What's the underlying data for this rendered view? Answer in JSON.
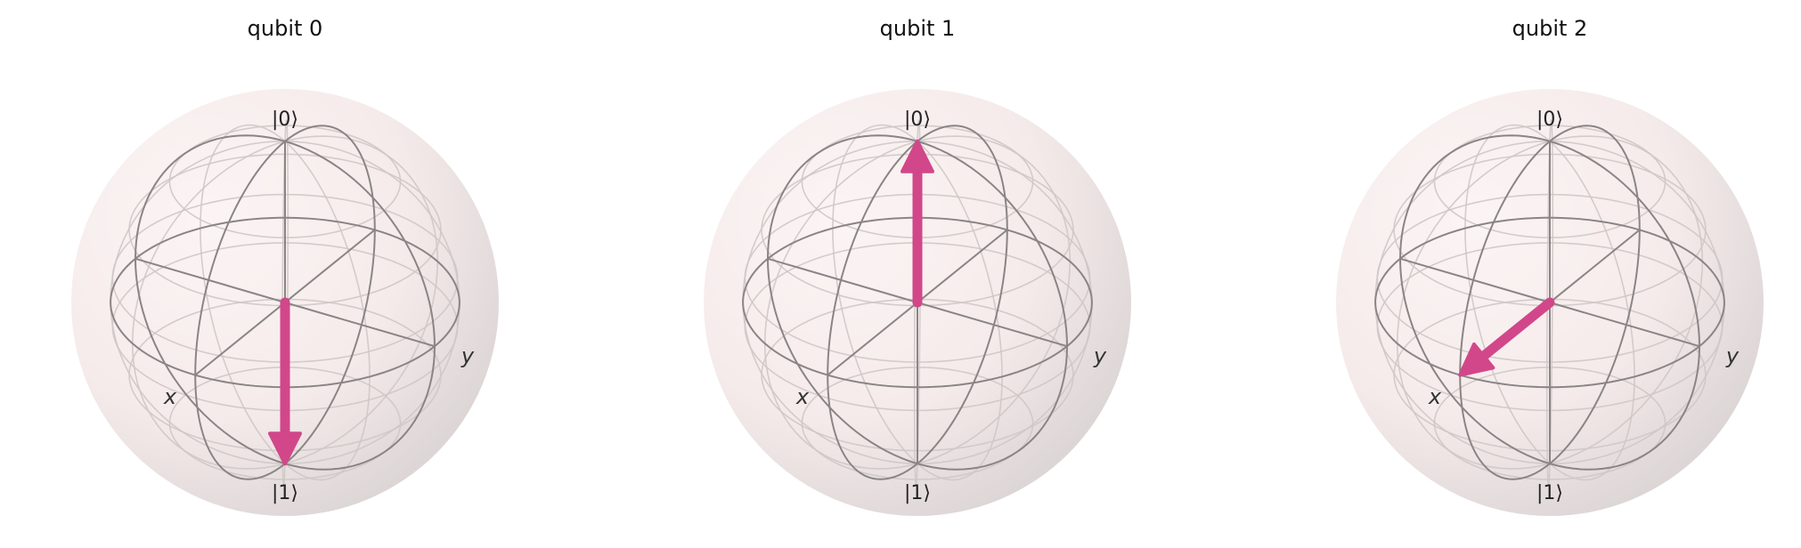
{
  "figure": {
    "colors": {
      "background": "#ffffff",
      "sphere_fill": "#f2e4e4",
      "sphere_shadow": "#c8c0c0",
      "wire_grid": "#cfc7c7",
      "wire_main": "#8a8585",
      "vector": "#d1478a"
    },
    "qubits": [
      {
        "title": "qubit 0",
        "top_label": "|0⟩",
        "bottom_label": "|1⟩",
        "x_label": "x",
        "y_label": "y",
        "state": "|1⟩",
        "bloch_vector": [
          0,
          0,
          -1
        ]
      },
      {
        "title": "qubit 1",
        "top_label": "|0⟩",
        "bottom_label": "|1⟩",
        "x_label": "x",
        "y_label": "y",
        "state": "|0⟩",
        "bloch_vector": [
          0,
          0,
          1
        ]
      },
      {
        "title": "qubit 2",
        "top_label": "|0⟩",
        "bottom_label": "|1⟩",
        "x_label": "x",
        "y_label": "y",
        "state": "+x",
        "bloch_vector": [
          1,
          0,
          0
        ]
      }
    ]
  }
}
